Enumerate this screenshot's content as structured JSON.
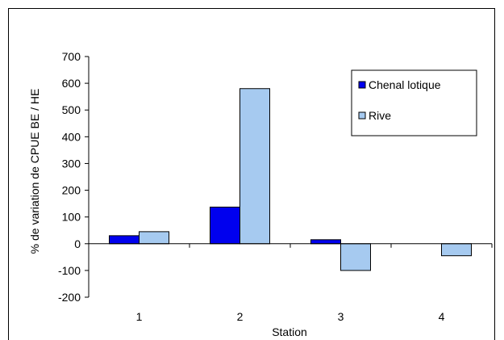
{
  "chart_data": {
    "type": "bar",
    "title": "",
    "xlabel": "Station",
    "ylabel": "% de variation de CPUE BE / HE",
    "categories": [
      "1",
      "2",
      "3",
      "4"
    ],
    "series": [
      {
        "name": "Chenal lotique",
        "color": "#0000ee",
        "values": [
          30,
          137,
          15,
          0
        ]
      },
      {
        "name": "Rive",
        "color": "#a6caf0",
        "values": [
          45,
          580,
          -100,
          -45
        ]
      }
    ],
    "ylim": [
      -200,
      700
    ],
    "yticks": [
      -200,
      -100,
      0,
      100,
      200,
      300,
      400,
      500,
      600,
      700
    ],
    "grid": false,
    "legend_position": "right"
  }
}
